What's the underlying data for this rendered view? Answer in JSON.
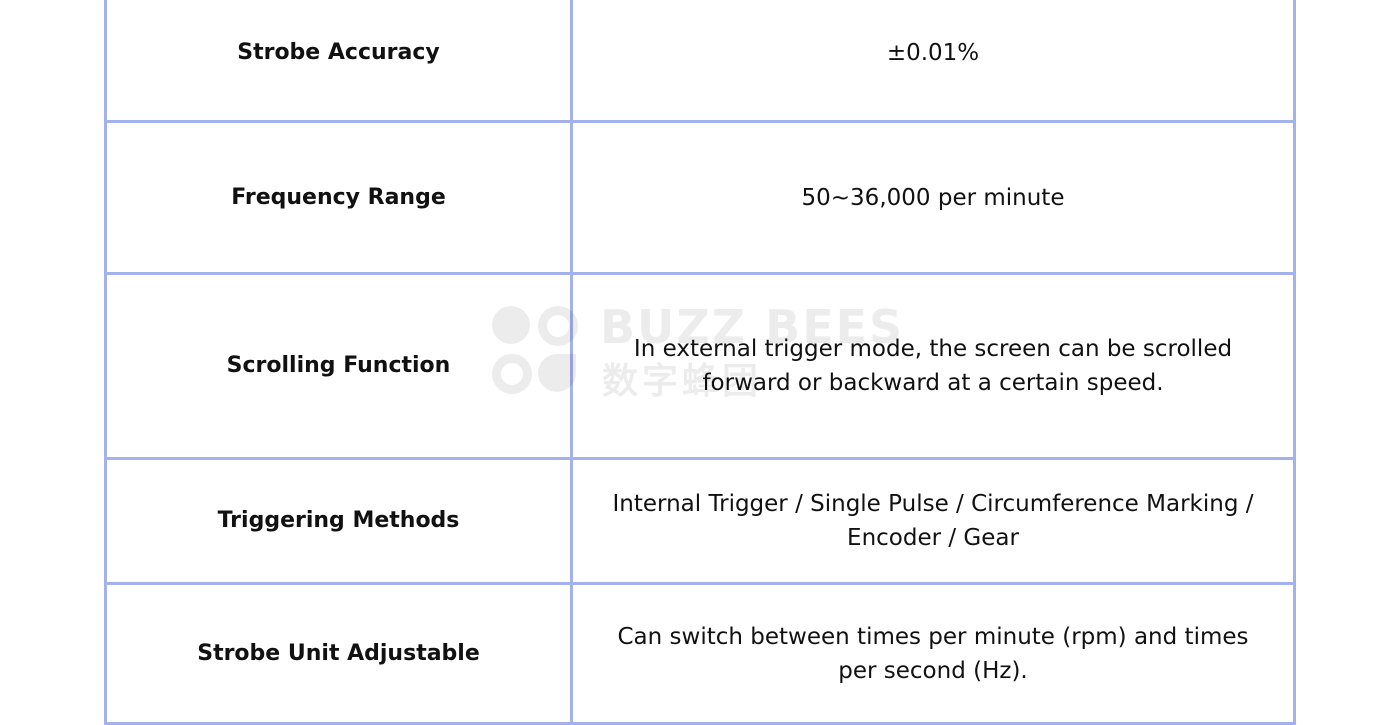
{
  "watermark": {
    "line1": "BUZZ BEES",
    "line2": "数字蜂团"
  },
  "rows": [
    {
      "label": "Strobe Accuracy",
      "value": "±0.01%"
    },
    {
      "label": "Frequency Range",
      "value": "50~36,000 per minute"
    },
    {
      "label": "Scrolling Function",
      "value": "In external trigger mode, the screen can be scrolled forward or backward at a certain speed."
    },
    {
      "label": "Triggering Methods",
      "value": "Internal Trigger / Single Pulse / Circumference Marking / Encoder / Gear"
    },
    {
      "label": "Strobe Unit Adjustable",
      "value": "Can switch between times per minute (rpm) and times per second (Hz)."
    }
  ]
}
